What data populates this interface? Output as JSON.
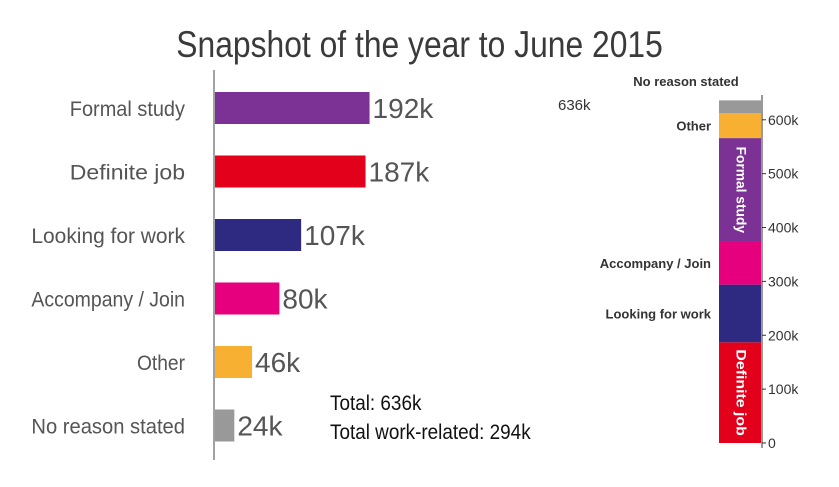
{
  "chart_data": [
    {
      "type": "bar",
      "orientation": "horizontal",
      "title": "Snapshot of the year to June 2015",
      "categories": [
        "Formal study",
        "Definite job",
        "Looking for work",
        "Accompany / Join",
        "Other",
        "No reason stated"
      ],
      "values": [
        192,
        187,
        107,
        80,
        46,
        24
      ],
      "value_labels": [
        "192k",
        "187k",
        "107k",
        "80k",
        "46k",
        "24k"
      ],
      "colors": [
        "#7b3294",
        "#e3001b",
        "#2e2a82",
        "#e6007e",
        "#f7b032",
        "#999999"
      ],
      "grid": false,
      "annotations": [
        "Total: 636k",
        "Total work-related: 294k"
      ]
    },
    {
      "type": "bar",
      "stacked": true,
      "orientation": "vertical",
      "total_label": "636k",
      "series": [
        {
          "name": "Definite job",
          "values": [
            187
          ],
          "color": "#e3001b"
        },
        {
          "name": "Looking for work",
          "values": [
            107
          ],
          "color": "#2e2a82"
        },
        {
          "name": "Accompany / Join",
          "values": [
            80
          ],
          "color": "#e6007e"
        },
        {
          "name": "Formal study",
          "values": [
            192
          ],
          "color": "#7b3294"
        },
        {
          "name": "Other",
          "values": [
            46
          ],
          "color": "#f7b032"
        },
        {
          "name": "No reason stated",
          "values": [
            24
          ],
          "color": "#999999"
        }
      ],
      "yticks": [
        "0",
        "100k",
        "200k",
        "300k",
        "400k",
        "500k",
        "600k"
      ],
      "ylim": [
        0,
        650
      ],
      "grid": false
    }
  ]
}
